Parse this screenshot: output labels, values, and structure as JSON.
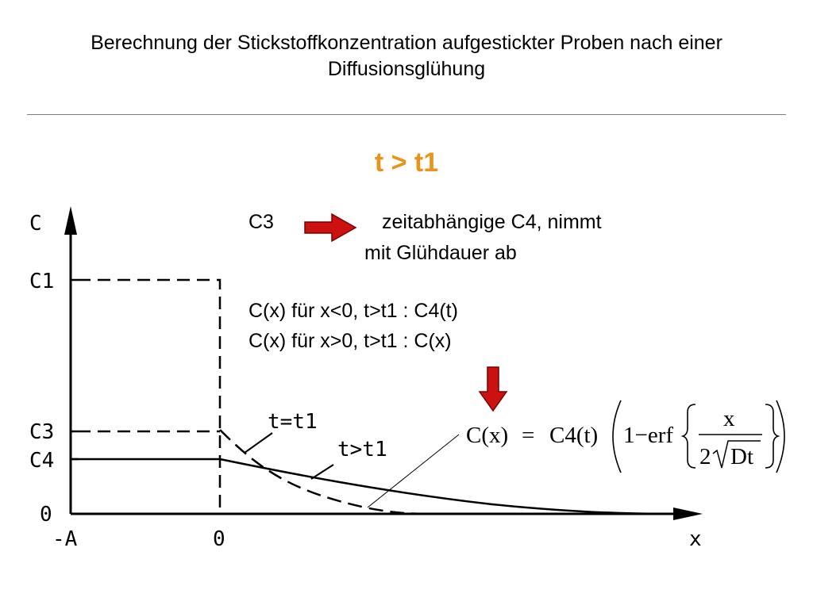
{
  "slide": {
    "title_line1": "Berechnung der Stickstoffkonzentration aufgestickter Proben nach einer",
    "title_line2": "Diffusionsglühung",
    "subtitle": "t > t1",
    "subtitle_color": "#e8941a"
  },
  "explanation": {
    "c3_label": "C3",
    "arrow_color": "#cc1111",
    "arrow_text_line1": "zeitabhängige C4, nimmt",
    "arrow_text_line2": "mit Glühdauer ab",
    "condition_line1": "C(x) für x<0, t>t1  :  C4(t)",
    "condition_line2": "C(x) für x>0, t>t1  :  C(x)"
  },
  "formula": {
    "lhs": "C(x)",
    "equals": "=",
    "c4t": "C4(t)",
    "one_minus": "1−erf",
    "numerator": "x",
    "denominator_two": "2",
    "denominator_dt": "Dt"
  },
  "diagram": {
    "y_axis_label": "C",
    "x_axis_label": "x",
    "y_ticks": [
      "C1",
      "C3",
      "C4",
      "0"
    ],
    "x_ticks": [
      "-A",
      "0"
    ],
    "curve_label_t_eq": "t=t1",
    "curve_label_t_gt": "t>t1"
  }
}
